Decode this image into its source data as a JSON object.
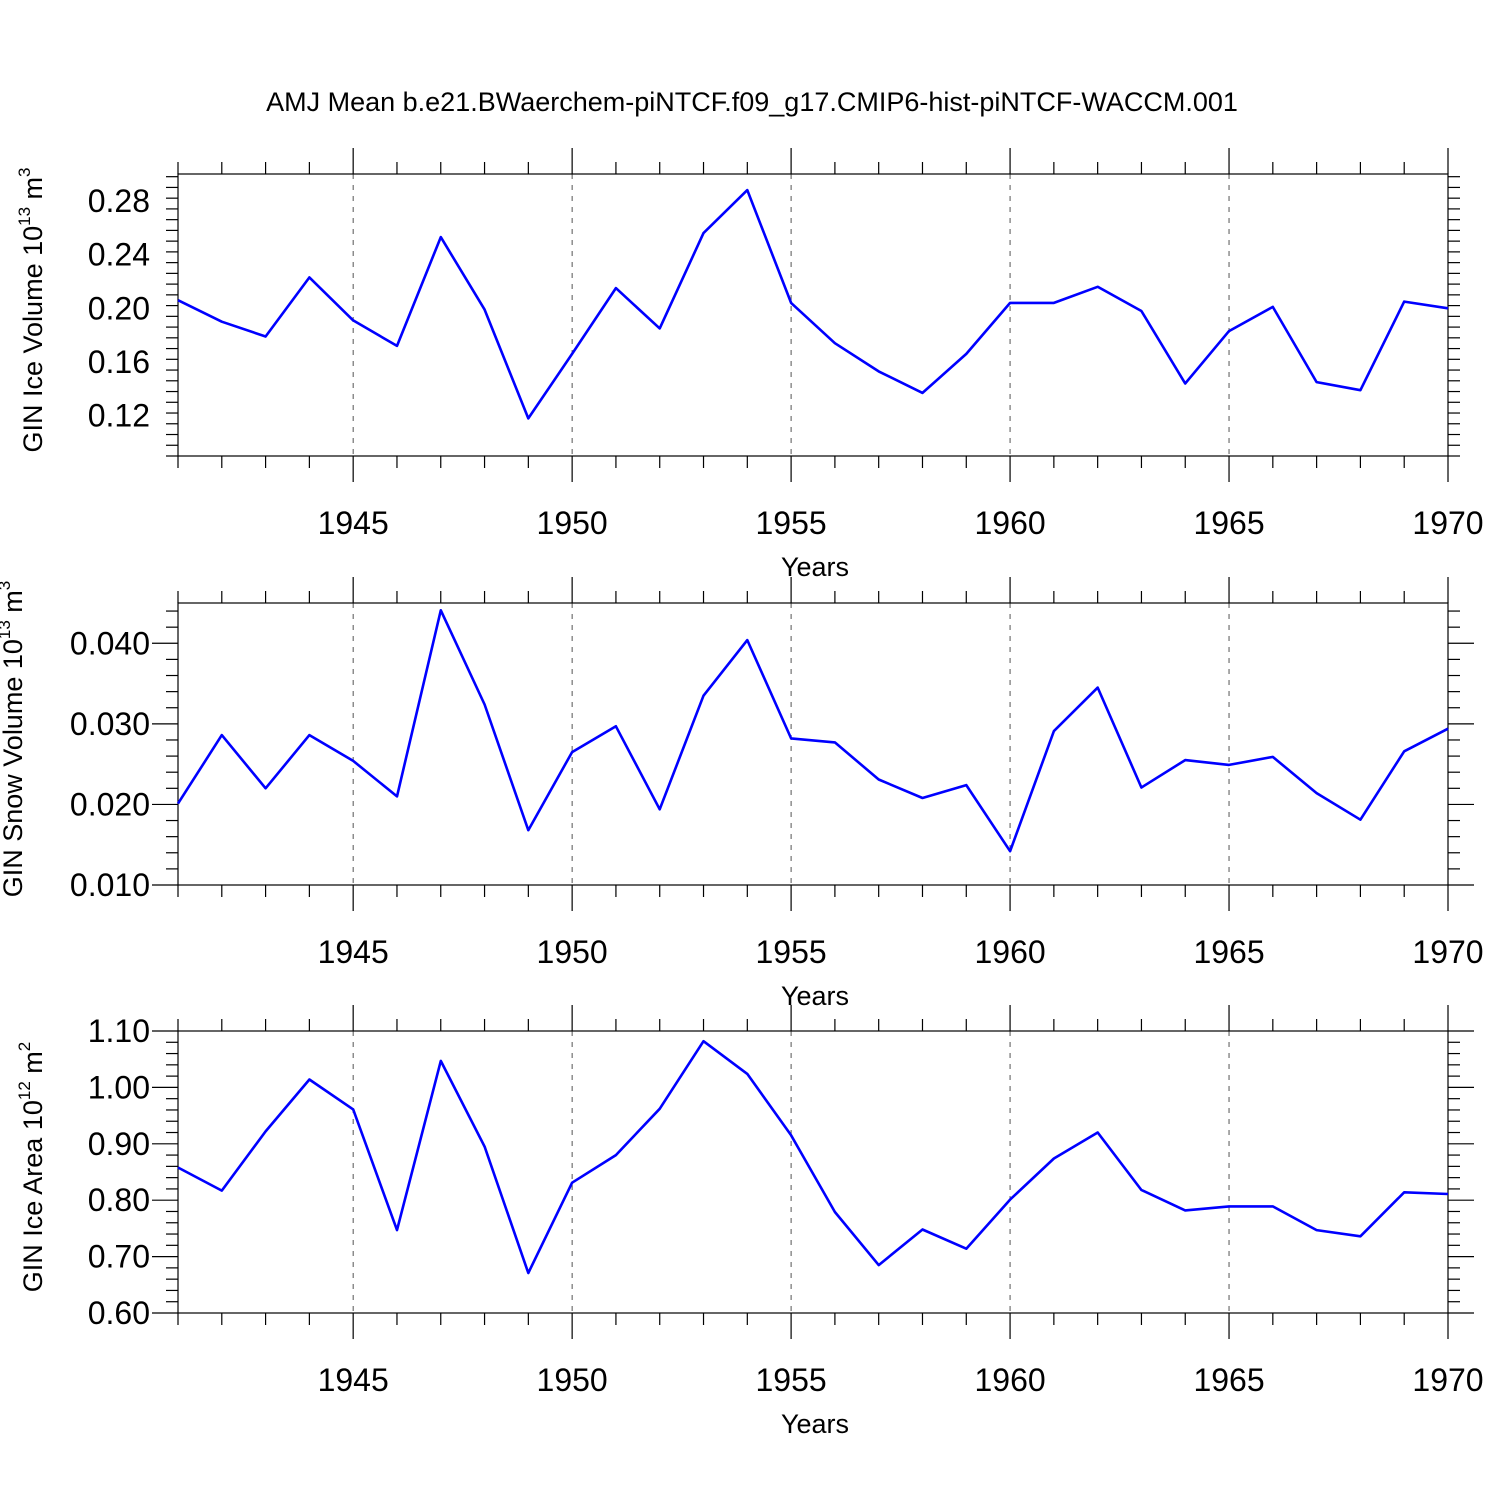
{
  "title": "AMJ Mean b.e21.BWaerchem-piNTCF.f09_g17.CMIP6-hist-piNTCF-WACCM.001",
  "chart_data": [
    {
      "type": "line",
      "ylabel": {
        "text": "GIN Ice Volume 10",
        "sup": "13",
        "text2": " m",
        "sup2": "3"
      },
      "xlabel": "Years",
      "xlim": [
        1941,
        1970
      ],
      "ylim": [
        0.09,
        0.3
      ],
      "yticks": [
        "0.12",
        "0.16",
        "0.20",
        "0.24",
        "0.28"
      ],
      "xticks": [
        "1945",
        "1950",
        "1955",
        "1960",
        "1965",
        "1970"
      ],
      "grid_x": true,
      "color": "#0000ff",
      "x": [
        1941,
        1942,
        1943,
        1944,
        1945,
        1946,
        1947,
        1948,
        1949,
        1950,
        1951,
        1952,
        1953,
        1954,
        1955,
        1956,
        1957,
        1958,
        1959,
        1960,
        1961,
        1962,
        1963,
        1964,
        1965,
        1966,
        1967,
        1968,
        1969,
        1970
      ],
      "values": [
        0.206,
        0.19,
        0.179,
        0.223,
        0.191,
        0.172,
        0.253,
        0.199,
        0.118,
        0.166,
        0.215,
        0.185,
        0.256,
        0.288,
        0.204,
        0.174,
        0.153,
        0.137,
        0.166,
        0.204,
        0.204,
        0.216,
        0.198,
        0.144,
        0.183,
        0.201,
        0.145,
        0.139,
        0.205,
        0.2
      ]
    },
    {
      "type": "line",
      "ylabel": {
        "text": "GIN Snow Volume 10",
        "sup": "13",
        "text2": " m",
        "sup2": "3"
      },
      "xlabel": "Years",
      "xlim": [
        1941,
        1970
      ],
      "ylim": [
        0.01,
        0.045
      ],
      "yticks": [
        "0.010",
        "0.020",
        "0.030",
        "0.040"
      ],
      "xticks": [
        "1945",
        "1950",
        "1955",
        "1960",
        "1965",
        "1970"
      ],
      "grid_x": true,
      "color": "#0000ff",
      "x": [
        1941,
        1942,
        1943,
        1944,
        1945,
        1946,
        1947,
        1948,
        1949,
        1950,
        1951,
        1952,
        1953,
        1954,
        1955,
        1956,
        1957,
        1958,
        1959,
        1960,
        1961,
        1962,
        1963,
        1964,
        1965,
        1966,
        1967,
        1968,
        1969,
        1970
      ],
      "values": [
        0.0201,
        0.0286,
        0.022,
        0.0286,
        0.0254,
        0.021,
        0.0441,
        0.0324,
        0.0168,
        0.0265,
        0.0297,
        0.0194,
        0.0335,
        0.0404,
        0.0282,
        0.0277,
        0.0231,
        0.0208,
        0.0224,
        0.0142,
        0.0291,
        0.0345,
        0.0221,
        0.0255,
        0.0249,
        0.0259,
        0.0214,
        0.0181,
        0.0266,
        0.0294
      ]
    },
    {
      "type": "line",
      "ylabel": {
        "text": "GIN Ice Area 10",
        "sup": "12",
        "text2": " m",
        "sup2": "2"
      },
      "xlabel": "Years",
      "xlim": [
        1941,
        1970
      ],
      "ylim": [
        0.6,
        1.1
      ],
      "yticks": [
        "0.60",
        "0.70",
        "0.80",
        "0.90",
        "1.00",
        "1.10"
      ],
      "xticks": [
        "1945",
        "1950",
        "1955",
        "1960",
        "1965",
        "1970"
      ],
      "grid_x": true,
      "color": "#0000ff",
      "x": [
        1941,
        1942,
        1943,
        1944,
        1945,
        1946,
        1947,
        1948,
        1949,
        1950,
        1951,
        1952,
        1953,
        1954,
        1955,
        1956,
        1957,
        1958,
        1959,
        1960,
        1961,
        1962,
        1963,
        1964,
        1965,
        1966,
        1967,
        1968,
        1969,
        1970
      ],
      "values": [
        0.858,
        0.817,
        0.922,
        1.014,
        0.961,
        0.747,
        1.047,
        0.895,
        0.671,
        0.831,
        0.88,
        0.962,
        1.082,
        1.024,
        0.915,
        0.779,
        0.685,
        0.748,
        0.714,
        0.801,
        0.874,
        0.92,
        0.818,
        0.782,
        0.789,
        0.789,
        0.747,
        0.736,
        0.814,
        0.811
      ]
    }
  ]
}
